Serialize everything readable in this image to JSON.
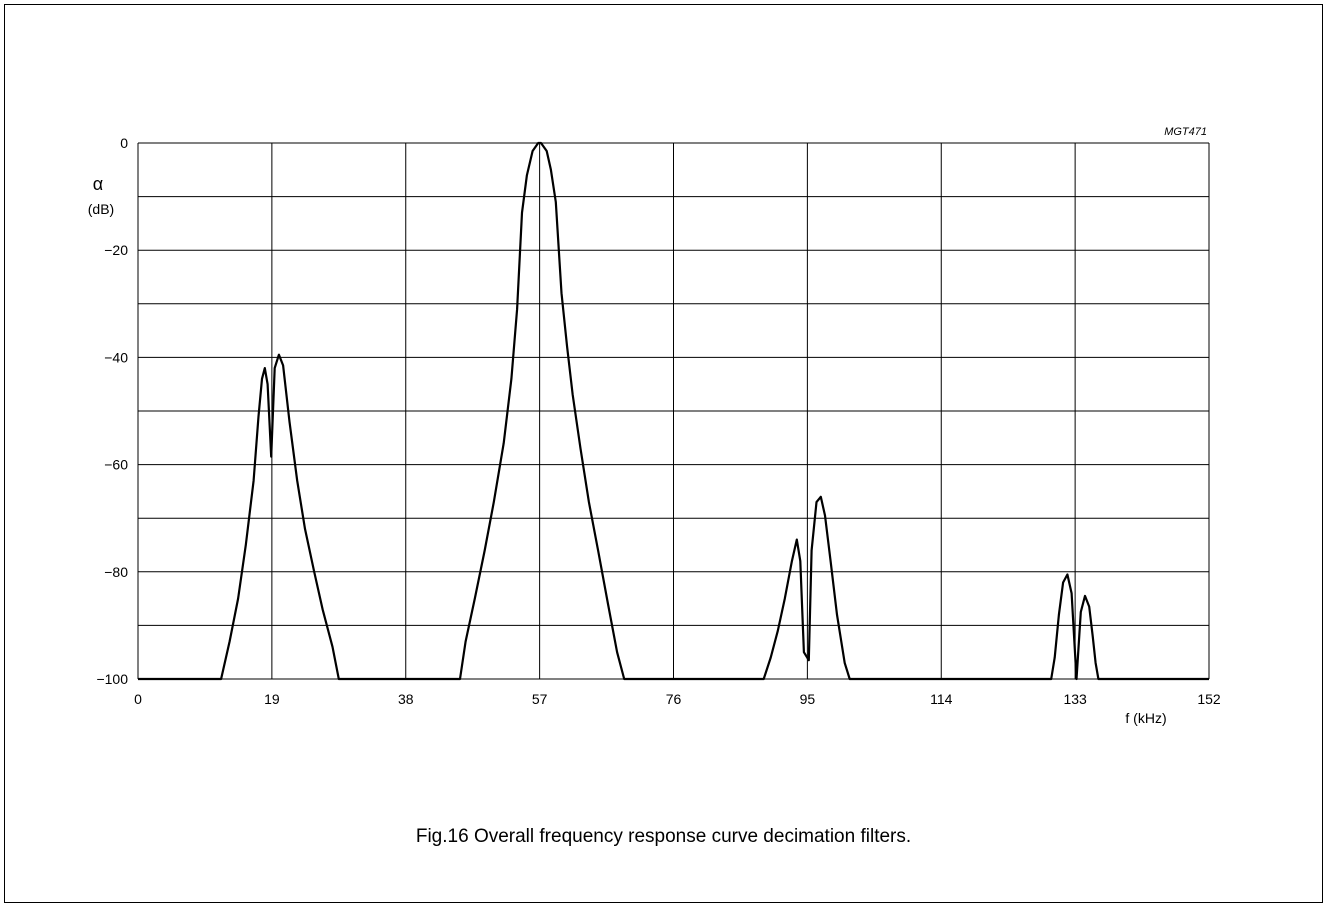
{
  "figure_code": "MGT471",
  "caption": "Fig.16  Overall frequency response curve decimation filters.",
  "chart_data": {
    "type": "line",
    "title": "",
    "xlabel": "f (kHz)",
    "ylabel_symbol": "α",
    "ylabel_unit": "(dB)",
    "xlim": [
      0,
      152
    ],
    "ylim": [
      -100,
      0
    ],
    "x_ticks": [
      0,
      19,
      38,
      57,
      76,
      95,
      114,
      133,
      152
    ],
    "x_tick_labels": [
      "0",
      "19",
      "38",
      "57",
      "76",
      "95",
      "114",
      "133",
      "152"
    ],
    "y_ticks": [
      0,
      -20,
      -40,
      -60,
      -80,
      -100
    ],
    "y_tick_labels": [
      "0",
      "−20",
      "−40",
      "−60",
      "−80",
      "−100"
    ],
    "y_minor_gridlines": [
      -10,
      -30,
      -50,
      -70,
      -90
    ],
    "grid": true,
    "series": [
      {
        "points": [
          [
            0,
            -100
          ],
          [
            11.8,
            -100
          ],
          [
            13,
            -93
          ],
          [
            14.2,
            -85
          ],
          [
            15.3,
            -75
          ],
          [
            16.4,
            -63
          ],
          [
            17.1,
            -51
          ],
          [
            17.6,
            -44
          ],
          [
            18.0,
            -42
          ],
          [
            18.4,
            -45
          ],
          [
            18.9,
            -58.5
          ],
          [
            19.4,
            -42
          ],
          [
            20.0,
            -39.5
          ],
          [
            20.6,
            -41.5
          ],
          [
            21.5,
            -52
          ],
          [
            22.6,
            -63
          ],
          [
            23.7,
            -72
          ],
          [
            25.0,
            -80
          ],
          [
            26.2,
            -87
          ],
          [
            27.6,
            -94
          ],
          [
            28.5,
            -100
          ],
          [
            45.7,
            -100
          ],
          [
            46.5,
            -93
          ],
          [
            47.8,
            -85
          ],
          [
            49.2,
            -76
          ],
          [
            50.5,
            -67
          ],
          [
            51.9,
            -56
          ],
          [
            53.0,
            -44
          ],
          [
            53.8,
            -31
          ],
          [
            54.5,
            -13
          ],
          [
            55.2,
            -6
          ],
          [
            56.0,
            -1.5
          ],
          [
            56.8,
            0
          ],
          [
            57.2,
            0
          ],
          [
            58.0,
            -1.5
          ],
          [
            58.6,
            -5
          ],
          [
            59.3,
            -11
          ],
          [
            60.1,
            -28
          ],
          [
            60.9,
            -38
          ],
          [
            61.7,
            -47
          ],
          [
            62.8,
            -57
          ],
          [
            64.0,
            -67
          ],
          [
            65.3,
            -76
          ],
          [
            66.7,
            -86
          ],
          [
            68.0,
            -95
          ],
          [
            69.0,
            -100
          ],
          [
            88.8,
            -100
          ],
          [
            89.8,
            -96
          ],
          [
            90.8,
            -91
          ],
          [
            91.8,
            -85
          ],
          [
            92.8,
            -78
          ],
          [
            93.5,
            -74
          ],
          [
            94.0,
            -78
          ],
          [
            94.5,
            -95
          ],
          [
            95.2,
            -96.5
          ],
          [
            95.6,
            -76
          ],
          [
            96.3,
            -67
          ],
          [
            96.9,
            -66
          ],
          [
            97.5,
            -69.5
          ],
          [
            98.3,
            -78
          ],
          [
            99.2,
            -88
          ],
          [
            100.3,
            -97
          ],
          [
            101.0,
            -100
          ],
          [
            129.6,
            -100
          ],
          [
            130.1,
            -96
          ],
          [
            130.7,
            -88
          ],
          [
            131.3,
            -82
          ],
          [
            131.9,
            -80.5
          ],
          [
            132.5,
            -84
          ],
          [
            133.2,
            -100
          ],
          [
            133.8,
            -87.5
          ],
          [
            134.4,
            -84.5
          ],
          [
            135.0,
            -86.5
          ],
          [
            135.5,
            -92
          ],
          [
            135.9,
            -97
          ],
          [
            136.3,
            -100
          ],
          [
            152,
            -100
          ]
        ]
      }
    ]
  }
}
